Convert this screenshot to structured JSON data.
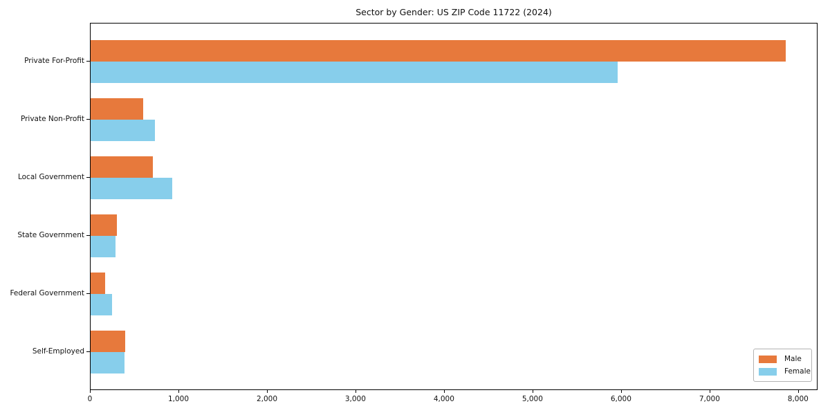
{
  "title": "Sector by Gender: US ZIP Code 11722 (2024)",
  "chart_data": {
    "type": "bar",
    "orientation": "horizontal",
    "title": "Sector by Gender: US ZIP Code 11722 (2024)",
    "categories": [
      "Private For-Profit",
      "Private Non-Profit",
      "Local Government",
      "State Government",
      "Federal Government",
      "Self-Employed"
    ],
    "series": [
      {
        "name": "Male",
        "color": "#e7793c",
        "values": [
          7850,
          590,
          700,
          300,
          160,
          390
        ]
      },
      {
        "name": "Female",
        "color": "#87ceeb",
        "values": [
          5950,
          730,
          920,
          280,
          240,
          380
        ]
      }
    ],
    "xlabel": "",
    "ylabel": "",
    "xlim": [
      0,
      8220
    ],
    "x_ticks": [
      0,
      1000,
      2000,
      3000,
      4000,
      5000,
      6000,
      7000,
      8000
    ],
    "x_tick_labels": [
      "0",
      "1,000",
      "2,000",
      "3,000",
      "4,000",
      "5,000",
      "6,000",
      "7,000",
      "8,000"
    ],
    "grid": false,
    "legend": {
      "position": "lower right",
      "entries": [
        "Male",
        "Female"
      ]
    }
  }
}
